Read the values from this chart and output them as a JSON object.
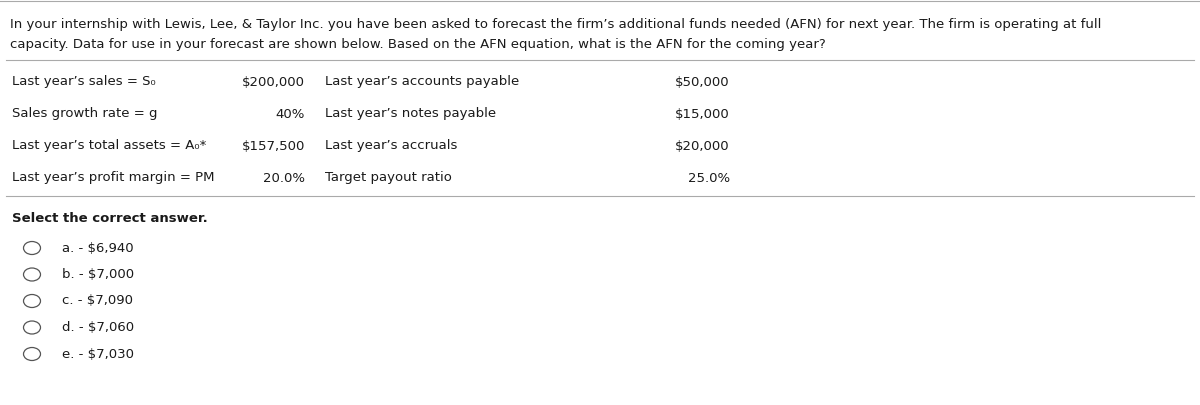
{
  "bg_color": "#ffffff",
  "text_color": "#1a1a1a",
  "border_color": "#888888",
  "header_text_line1": "In your internship with Lewis, Lee, & Taylor Inc. you have been asked to forecast the firm’s additional funds needed (AFN) for next year. The firm is operating at full",
  "header_text_line2": "capacity. Data for use in your forecast are shown below. Based on the AFN equation, what is the AFN for the coming year?",
  "left_labels": [
    "Last year’s sales = S₀",
    "Sales growth rate = g",
    "Last year’s total assets = A₀*",
    "Last year’s profit margin = PM"
  ],
  "left_values": [
    "$200,000",
    "40%",
    "$157,500",
    "20.0%"
  ],
  "right_labels": [
    "Last year’s accounts payable",
    "Last year’s notes payable",
    "Last year’s accruals",
    "Target payout ratio"
  ],
  "right_values": [
    "$50,000",
    "$15,000",
    "$20,000",
    "25.0%"
  ],
  "select_text": "Select the correct answer.",
  "choices": [
    "a. - $6,940",
    "b. - $7,000",
    "c. - $7,090",
    "d. - $7,060",
    "e. - $7,030"
  ],
  "font_size": 9.5,
  "bold_font_size": 9.5
}
